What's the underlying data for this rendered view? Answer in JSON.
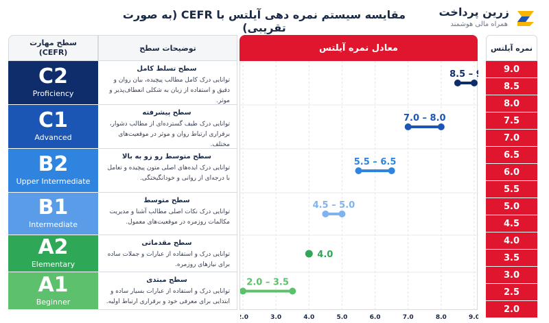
{
  "header": {
    "title": "مقایسه سیستم نمره دهی آیلتس با CEFR (به صورت تقریبی)",
    "brand_name": "زرین پرداخت",
    "brand_tagline": "همراه مالی هوشمند"
  },
  "columns": {
    "level_title": "سطح مهارت",
    "level_sub": "(CEFR)",
    "desc": "توضیحات سطح",
    "ielts": "معادل نمره آیلتس",
    "band": "نمره آیلتس"
  },
  "levels": [
    {
      "code": "C2",
      "name": "Proficiency",
      "desc_title": "سطح تسلط کامل",
      "desc_text": "توانایی درک کامل مطالب پیچیده، بیان روان و دقیق و استفاده از زبان به شکلی انعطاف‌پذیر و موثر.",
      "color": "#0f2d6b"
    },
    {
      "code": "C1",
      "name": "Advanced",
      "desc_title": "سطح پیشرفته",
      "desc_text": "توانایی درک طیف گسترده‌ای از مطالب دشوار، برقراری ارتباط روان و موثر در موقعیت‌های مختلف.",
      "color": "#1b56b4"
    },
    {
      "code": "B2",
      "name": "Upper Intermediate",
      "desc_title": "سطح متوسط رو زو به بالا",
      "desc_text": "توانایی درک ایده‌های اصلی متون پیچیده و تعامل با درجه‌ای از روانی و خودانگیختگی.",
      "color": "#2f84e0"
    },
    {
      "code": "B1",
      "name": "Intermediate",
      "desc_title": "سطح متوسط",
      "desc_text": "توانایی درک نکات اصلی مطالب آشنا و مدیریت مکالمات روزمره در موقعیت‌های معمول.",
      "color": "#5b9ce8"
    },
    {
      "code": "A2",
      "name": "Elementary",
      "desc_title": "سطح مقدماتی",
      "desc_text": "توانایی درک و استفاده از عبارات و جملات ساده برای نیازهای روزمره.",
      "color": "#2ea856"
    },
    {
      "code": "A1",
      "name": "Beginner",
      "desc_title": "سطح مبتدی",
      "desc_text": "توانایی درک و استفاده از عبارات بسیار ساده و ابتدایی برای معرفی خود و برقراری ارتباط اولیه.",
      "color": "#5cc06d"
    }
  ],
  "bands": [
    "9.0",
    "8.5",
    "8.0",
    "7.5",
    "7.0",
    "6.5",
    "6.0",
    "5.5",
    "5.0",
    "4.5",
    "4.0",
    "3.5",
    "3.0",
    "2.5",
    "2.0"
  ],
  "chart_data": {
    "type": "range",
    "title": "معادل نمره آیلتس",
    "xlim": [
      2.0,
      9.0
    ],
    "x_ticks": [
      "2.0",
      "3.0",
      "4.0",
      "5.0",
      "6.0",
      "7.0",
      "8.0",
      "9.0"
    ],
    "categories": [
      "C2",
      "C1",
      "B2",
      "B1",
      "A2",
      "A1"
    ],
    "ranges": [
      {
        "level": "C2",
        "low": 8.5,
        "high": 9.0,
        "label": "8.5 – 9",
        "color": "#0f2d6b"
      },
      {
        "level": "C1",
        "low": 7.0,
        "high": 8.0,
        "label": "7.0 – 8.0",
        "color": "#1b56b4"
      },
      {
        "level": "B2",
        "low": 5.5,
        "high": 6.5,
        "label": "5.5 – 6.5",
        "color": "#2f84e0"
      },
      {
        "level": "B1",
        "low": 4.5,
        "high": 5.0,
        "label": "4.5 – 5.0",
        "color": "#7fb3ef"
      },
      {
        "level": "A2",
        "low": 4.0,
        "high": 4.0,
        "label": "4.0",
        "color": "#2ea856"
      },
      {
        "level": "A1",
        "low": 2.0,
        "high": 3.5,
        "label": "2.0 – 3.5",
        "color": "#5cc06d"
      }
    ],
    "grid": true
  },
  "colors": {
    "accent": "#e0162e",
    "navy": "#1a2a44"
  }
}
